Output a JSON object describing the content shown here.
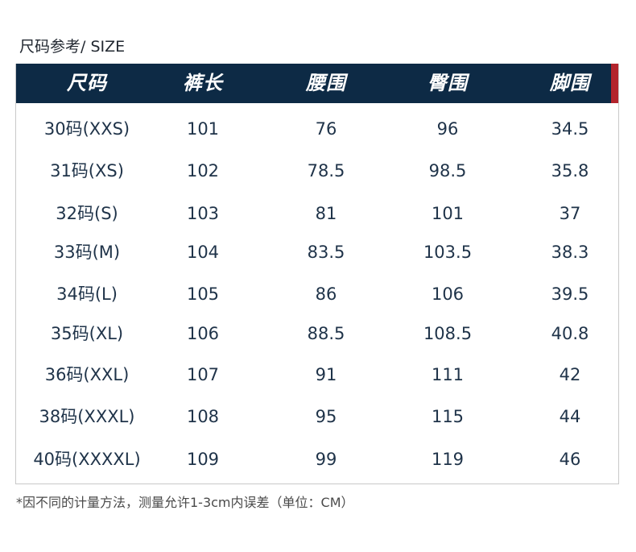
{
  "title": "尺码参考/ SIZE",
  "headers": [
    "尺码",
    "裤长",
    "腰围",
    "臀围",
    "脚围"
  ],
  "rows": [
    [
      "30码(XXS)",
      "101",
      "76",
      "96",
      "34.5"
    ],
    [
      "31码(XS)",
      "102",
      "78.5",
      "98.5",
      "35.8"
    ],
    [
      "32码(S)",
      "103",
      "81",
      "101",
      "37"
    ],
    [
      "33码(M)",
      "104",
      "83.5",
      "103.5",
      "38.3"
    ],
    [
      "34码(L)",
      "105",
      "86",
      "106",
      "39.5"
    ],
    [
      "35码(XL)",
      "106",
      "88.5",
      "108.5",
      "40.8"
    ],
    [
      "36码(XXL)",
      "107",
      "91",
      "111",
      "42"
    ],
    [
      "38码(XXXL)",
      "108",
      "95",
      "115",
      "44"
    ],
    [
      "40码(XXXXL)",
      "109",
      "99",
      "119",
      "46"
    ]
  ],
  "note": "*因不同的计量方法，测量允许1-3cm内误差（单位：CM）",
  "colors": {
    "header_bg": "#0d2a45",
    "accent": "#b3242c",
    "text": "#1f3349"
  }
}
